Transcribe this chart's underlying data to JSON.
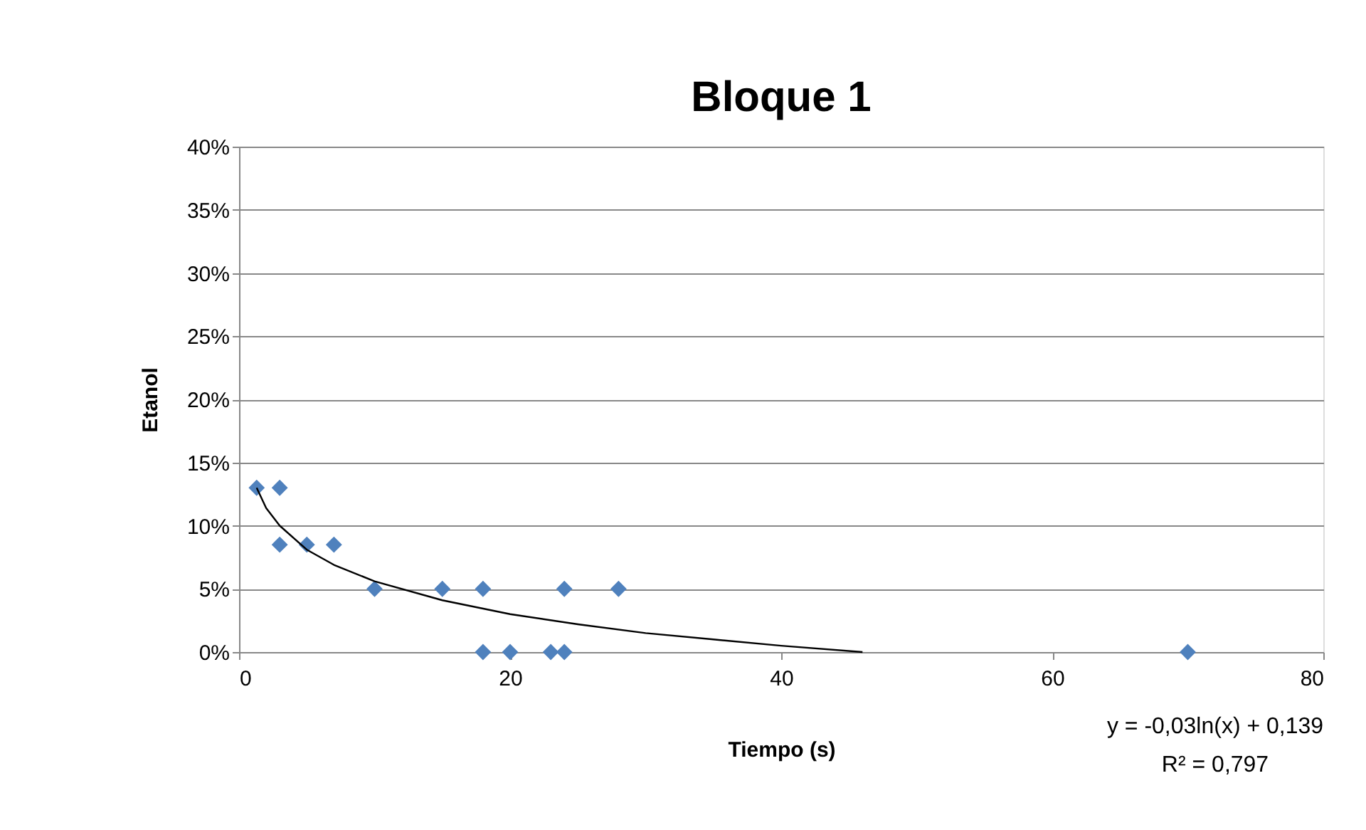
{
  "chart_data": {
    "type": "scatter",
    "title": "Bloque 1",
    "xlabel": "Tiempo (s)",
    "ylabel": "Etanol",
    "xlim": [
      0,
      80
    ],
    "xticks": [
      0,
      20,
      40,
      60,
      80
    ],
    "ylim": [
      0,
      40
    ],
    "yticks": [
      {
        "value": 0,
        "label": "0%"
      },
      {
        "value": 5,
        "label": "5%"
      },
      {
        "value": 10,
        "label": "10%"
      },
      {
        "value": 15,
        "label": "15%"
      },
      {
        "value": 20,
        "label": "20%"
      },
      {
        "value": 25,
        "label": "25%"
      },
      {
        "value": 30,
        "label": "30%"
      },
      {
        "value": 35,
        "label": "35%"
      },
      {
        "value": 40,
        "label": "40%"
      }
    ],
    "grid": "y",
    "series": [
      {
        "marker": "diamond",
        "color": "#4f81bd",
        "x": [
          1.3,
          3,
          3,
          5,
          7,
          10,
          15,
          18,
          18,
          20,
          23,
          24,
          24,
          28,
          70
        ],
        "values": [
          13,
          13,
          8.5,
          8.5,
          8.5,
          5,
          5,
          5,
          0,
          0,
          0,
          0,
          5,
          5,
          0
        ]
      },
      {
        "type": "line",
        "color": "#000000",
        "line_style": "solid",
        "marker": "none",
        "x": [
          1.3,
          2,
          3,
          5,
          7,
          10,
          15,
          20,
          25,
          30,
          35,
          40,
          46
        ],
        "values": [
          13,
          11.4,
          10,
          8.1,
          6.9,
          5.6,
          4.1,
          3,
          2.2,
          1.5,
          1,
          0.5,
          0
        ]
      }
    ],
    "annotations": [
      "y = -0,03ln(x) + 0,139",
      "R² = 0,797"
    ]
  }
}
